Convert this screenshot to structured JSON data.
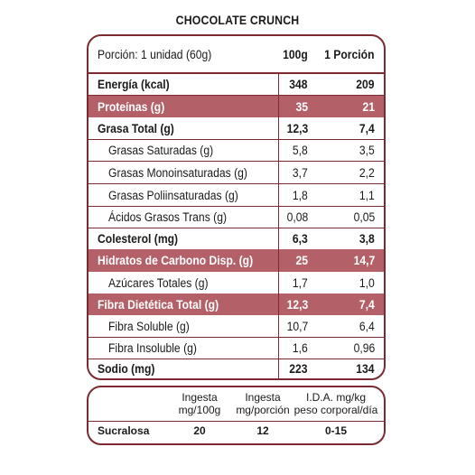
{
  "title": "CHOCOLATE CRUNCH",
  "header": {
    "portion_label": "Porción: 1 unidad (60g)",
    "col1": "100g",
    "col2": "1 Porción"
  },
  "rows": [
    {
      "label": "Energía (kcal)",
      "v100": "348",
      "vportion": "209"
    },
    {
      "label": "Proteínas (g)",
      "v100": "35",
      "vportion": "21"
    },
    {
      "label": "Grasa Total (g)",
      "v100": "12,3",
      "vportion": "7,4"
    },
    {
      "label": "Grasas Saturadas (g)",
      "v100": "5,8",
      "vportion": "3,5"
    },
    {
      "label": "Grasas Monoinsaturadas (g)",
      "v100": "3,7",
      "vportion": "2,2"
    },
    {
      "label": "Grasas Poliinsaturadas (g)",
      "v100": "1,8",
      "vportion": "1,1"
    },
    {
      "label": "Ácidos Grasos Trans (g)",
      "v100": "0,08",
      "vportion": "0,05"
    },
    {
      "label": "Colesterol (mg)",
      "v100": "6,3",
      "vportion": "3,8"
    },
    {
      "label": "Hidratos de Carbono Disp. (g)",
      "v100": "25",
      "vportion": "14,7"
    },
    {
      "label": "Azúcares Totales (g)",
      "v100": "1,7",
      "vportion": "1,0"
    },
    {
      "label": "Fibra Dietética Total (g)",
      "v100": "12,3",
      "vportion": "7,4"
    },
    {
      "label": "Fibra Soluble (g)",
      "v100": "10,7",
      "vportion": "6,4"
    },
    {
      "label": "Fibra Insoluble (g)",
      "v100": "1,6",
      "vportion": "0,96"
    },
    {
      "label": "Sodio (mg)",
      "v100": "223",
      "vportion": "134"
    }
  ],
  "sweetener": {
    "col1": [
      "Ingesta",
      "mg/100g"
    ],
    "col2": [
      "Ingesta",
      "mg/porción"
    ],
    "col3": [
      "I.D.A. mg/kg",
      "peso corporal/día"
    ],
    "name": "Sucralosa",
    "v1": "20",
    "v2": "12",
    "v3": "0-15"
  },
  "colors": {
    "border": "#7a2a30",
    "highlight": "#b46068"
  }
}
